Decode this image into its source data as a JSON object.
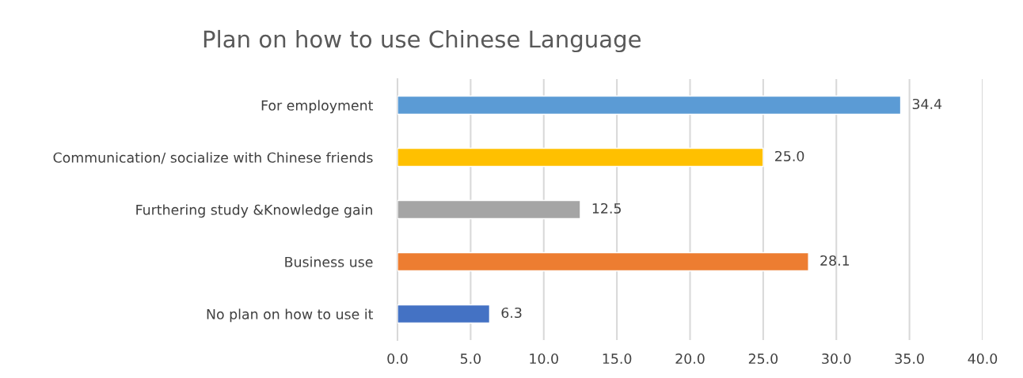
{
  "chart_data": {
    "type": "bar",
    "orientation": "horizontal",
    "title": "Plan on how to use Chinese Language",
    "categories": [
      "For employment",
      "Communication/ socialize with Chinese friends",
      "Furthering study &Knowledge gain",
      "Business use",
      "No plan on how to use it"
    ],
    "values": [
      34.4,
      25.0,
      12.5,
      28.1,
      6.3
    ],
    "colors": [
      "#5b9bd5",
      "#ffc000",
      "#a5a5a5",
      "#ed7d31",
      "#4472c4"
    ],
    "value_labels": [
      "34.4",
      "25.0",
      "12.5",
      "28.1",
      "6.3"
    ],
    "xlim": [
      0,
      40
    ],
    "xticks": [
      {
        "value": 0,
        "label": "0.0"
      },
      {
        "value": 5,
        "label": "5.0"
      },
      {
        "value": 10,
        "label": "10.0"
      },
      {
        "value": 15,
        "label": "15.0"
      },
      {
        "value": 20,
        "label": "20.0"
      },
      {
        "value": 25,
        "label": "25.0"
      },
      {
        "value": 30,
        "label": "30.0"
      },
      {
        "value": 35,
        "label": "35.0"
      },
      {
        "value": 40,
        "label": "40.0"
      }
    ],
    "grid": "x",
    "legend": false
  }
}
